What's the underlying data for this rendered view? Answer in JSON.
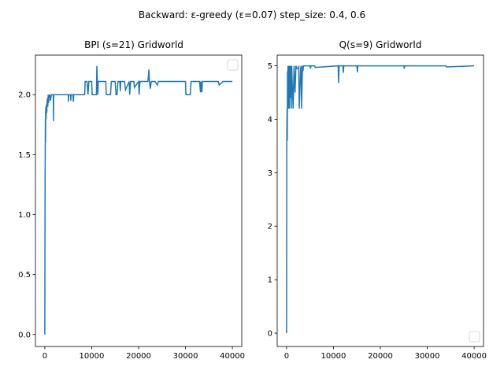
{
  "suptitle": "Backward: ε-greedy (ε=0.07) step_size: 0.4, 0.6",
  "colors": {
    "line": "#1f77b4",
    "axes": "#000000",
    "legend_border": "#cccccc"
  },
  "chart_data": [
    {
      "type": "line",
      "title": "BPI (s=21) Gridworld",
      "xlabel": "",
      "ylabel": "",
      "xlim": [
        -2000,
        42000
      ],
      "ylim": [
        -0.1,
        2.33
      ],
      "xticks": [
        0,
        10000,
        20000,
        30000,
        40000
      ],
      "xtick_labels": [
        "0",
        "10000",
        "20000",
        "30000",
        "40000"
      ],
      "yticks": [
        0.0,
        0.5,
        1.0,
        1.5,
        2.0
      ],
      "ytick_labels": [
        "0.0",
        "0.5",
        "1.0",
        "1.5",
        "2.0"
      ],
      "legend": "top-right",
      "series": [
        {
          "name": "",
          "x": [
            0,
            60,
            120,
            150,
            180,
            220,
            280,
            350,
            420,
            500,
            560,
            640,
            720,
            800,
            900,
            1000,
            1100,
            1200,
            1400,
            1600,
            1800,
            1850,
            1900,
            2000,
            2200,
            5000,
            5050,
            5100,
            5500,
            5550,
            5600,
            6000,
            6100,
            6150,
            6300,
            6400,
            8500,
            8600,
            9000,
            9200,
            9400,
            9500,
            10000,
            10100,
            10200,
            11000,
            11100,
            11200,
            11300,
            11400,
            11500,
            13000,
            13100,
            14000,
            14200,
            14400,
            15000,
            15200,
            15400,
            15600,
            16000,
            16100,
            16200,
            17000,
            17200,
            18000,
            18100,
            18300,
            19000,
            19100,
            20000,
            20100,
            20300,
            20600,
            21000,
            22000,
            22200,
            22300,
            22500,
            22700,
            23000,
            23500,
            24000,
            24200,
            24400,
            25000,
            27000,
            29000,
            30000,
            30100,
            31000,
            31200,
            33000,
            33200,
            33300,
            33500,
            33600,
            35000,
            36000,
            37000,
            37200,
            38000,
            39000,
            40000
          ],
          "y": [
            0.0,
            1.3,
            1.8,
            1.6,
            1.85,
            1.9,
            1.8,
            1.92,
            1.85,
            1.95,
            1.97,
            1.9,
            2.0,
            1.93,
            2.0,
            1.98,
            2.0,
            1.95,
            2.0,
            2.0,
            2.0,
            1.78,
            2.0,
            2.0,
            2.0,
            2.0,
            1.94,
            2.0,
            2.0,
            1.95,
            2.0,
            2.0,
            1.94,
            2.0,
            2.0,
            2.0,
            2.0,
            2.11,
            2.11,
            2.0,
            2.11,
            2.11,
            2.11,
            2.0,
            2.0,
            2.0,
            2.24,
            2.11,
            2.0,
            2.11,
            2.11,
            2.11,
            2.0,
            2.0,
            2.11,
            2.11,
            2.11,
            2.0,
            2.0,
            2.11,
            2.11,
            2.03,
            2.11,
            2.11,
            2.04,
            2.11,
            2.0,
            2.11,
            2.11,
            2.06,
            2.11,
            2.0,
            2.11,
            2.11,
            2.11,
            2.11,
            2.21,
            2.11,
            2.05,
            2.11,
            2.11,
            2.11,
            2.08,
            2.11,
            2.11,
            2.11,
            2.11,
            2.11,
            2.11,
            2.0,
            2.0,
            2.11,
            2.11,
            2.02,
            2.11,
            2.02,
            2.11,
            2.11,
            2.11,
            2.11,
            2.08,
            2.11,
            2.11,
            2.11
          ]
        }
      ]
    },
    {
      "type": "line",
      "title": "Q(s=9) Gridworld",
      "xlabel": "",
      "ylabel": "",
      "xlim": [
        -2000,
        42000
      ],
      "ylim": [
        -0.25,
        5.2
      ],
      "xticks": [
        0,
        10000,
        20000,
        30000,
        40000
      ],
      "xtick_labels": [
        "0",
        "10000",
        "20000",
        "30000",
        "40000"
      ],
      "yticks": [
        0,
        1,
        2,
        3,
        4,
        5
      ],
      "ytick_labels": [
        "0",
        "1",
        "2",
        "3",
        "4",
        "5"
      ],
      "legend": "bottom-right",
      "series": [
        {
          "name": "",
          "x": [
            0,
            40,
            80,
            120,
            150,
            200,
            250,
            300,
            350,
            400,
            450,
            500,
            600,
            700,
            800,
            900,
            1000,
            1100,
            1200,
            1400,
            1600,
            1800,
            2000,
            2200,
            2500,
            2600,
            2700,
            3000,
            3100,
            3200,
            3400,
            3500,
            3600,
            5000,
            5100,
            5200,
            6000,
            6100,
            11000,
            11100,
            11200,
            12000,
            12100,
            12200,
            15000,
            15100,
            15200,
            25000,
            25100,
            25200,
            34000,
            34100,
            40000
          ],
          "y": [
            0.0,
            3.55,
            4.0,
            4.2,
            3.6,
            4.9,
            4.5,
            5.0,
            4.2,
            4.9,
            5.0,
            4.7,
            4.2,
            5.0,
            4.4,
            5.0,
            4.2,
            5.0,
            4.7,
            4.2,
            5.0,
            4.5,
            5.0,
            4.95,
            4.95,
            5.0,
            4.2,
            4.95,
            5.0,
            4.2,
            5.0,
            4.9,
            5.0,
            5.0,
            4.95,
            5.0,
            5.0,
            4.97,
            5.0,
            4.68,
            5.0,
            5.0,
            4.87,
            5.0,
            5.0,
            4.88,
            5.0,
            5.0,
            4.95,
            5.0,
            5.0,
            4.98,
            5.0
          ]
        }
      ]
    }
  ]
}
